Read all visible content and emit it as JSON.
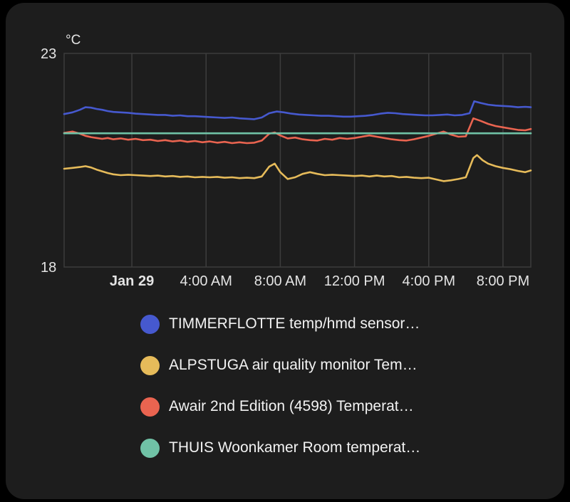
{
  "colors": {
    "outer_bg": "#000000",
    "card_bg": "#1d1d1d",
    "grid": "#3c3c3c",
    "axis_text": "#e4e4e4",
    "legend_text": "#f2f2f2"
  },
  "chart_data": {
    "type": "line",
    "title": "",
    "unit_label": "°C",
    "xlabel": "",
    "ylabel": "°C",
    "ylim": [
      18,
      23
    ],
    "xlim": [
      -3.65,
      21.5
    ],
    "grid": true,
    "legend_position": "bottom",
    "y_ticks": [
      {
        "value": 23,
        "label": "23"
      },
      {
        "value": 18,
        "label": "18"
      }
    ],
    "x_ticks": [
      {
        "value": 0,
        "label": "Jan 29",
        "bold": true
      },
      {
        "value": 4,
        "label": "4:00 AM",
        "bold": false
      },
      {
        "value": 8,
        "label": "8:00 AM",
        "bold": false
      },
      {
        "value": 12,
        "label": "12:00 PM",
        "bold": false
      },
      {
        "value": 16,
        "label": "4:00 PM",
        "bold": false
      },
      {
        "value": 20,
        "label": "8:00 PM",
        "bold": false
      }
    ],
    "series": [
      {
        "name": "TIMMERFLOTTE temp/hmd sensor…",
        "color": "#4659cf",
        "points": [
          [
            -3.65,
            21.58
          ],
          [
            -3.2,
            21.62
          ],
          [
            -2.8,
            21.68
          ],
          [
            -2.5,
            21.74
          ],
          [
            -2.2,
            21.73
          ],
          [
            -1.9,
            21.7
          ],
          [
            -1.6,
            21.68
          ],
          [
            -1.3,
            21.65
          ],
          [
            -1.0,
            21.63
          ],
          [
            -0.6,
            21.62
          ],
          [
            -0.2,
            21.61
          ],
          [
            0.2,
            21.59
          ],
          [
            0.6,
            21.58
          ],
          [
            1.0,
            21.57
          ],
          [
            1.4,
            21.56
          ],
          [
            1.8,
            21.56
          ],
          [
            2.2,
            21.54
          ],
          [
            2.6,
            21.55
          ],
          [
            3.0,
            21.53
          ],
          [
            3.4,
            21.53
          ],
          [
            3.8,
            21.52
          ],
          [
            4.2,
            21.51
          ],
          [
            4.6,
            21.5
          ],
          [
            5.0,
            21.49
          ],
          [
            5.4,
            21.5
          ],
          [
            5.8,
            21.48
          ],
          [
            6.2,
            21.47
          ],
          [
            6.6,
            21.46
          ],
          [
            7.0,
            21.5
          ],
          [
            7.4,
            21.6
          ],
          [
            7.8,
            21.64
          ],
          [
            8.2,
            21.62
          ],
          [
            8.6,
            21.59
          ],
          [
            9.0,
            21.57
          ],
          [
            9.4,
            21.56
          ],
          [
            9.8,
            21.55
          ],
          [
            10.2,
            21.54
          ],
          [
            10.6,
            21.54
          ],
          [
            11.0,
            21.53
          ],
          [
            11.4,
            21.52
          ],
          [
            11.8,
            21.52
          ],
          [
            12.2,
            21.53
          ],
          [
            12.6,
            21.54
          ],
          [
            13.0,
            21.56
          ],
          [
            13.4,
            21.59
          ],
          [
            13.8,
            21.61
          ],
          [
            14.2,
            21.6
          ],
          [
            14.6,
            21.58
          ],
          [
            15.0,
            21.57
          ],
          [
            15.4,
            21.56
          ],
          [
            15.8,
            21.55
          ],
          [
            16.2,
            21.55
          ],
          [
            16.6,
            21.56
          ],
          [
            17.0,
            21.57
          ],
          [
            17.4,
            21.55
          ],
          [
            17.8,
            21.56
          ],
          [
            18.2,
            21.6
          ],
          [
            18.45,
            21.88
          ],
          [
            18.8,
            21.84
          ],
          [
            19.2,
            21.8
          ],
          [
            19.6,
            21.78
          ],
          [
            20.0,
            21.77
          ],
          [
            20.4,
            21.76
          ],
          [
            20.8,
            21.74
          ],
          [
            21.2,
            21.75
          ],
          [
            21.5,
            21.74
          ]
        ]
      },
      {
        "name": "ALPSTUGA air quality monitor Tem…",
        "color": "#e6bb5a",
        "points": [
          [
            -3.65,
            20.3
          ],
          [
            -3.2,
            20.32
          ],
          [
            -2.8,
            20.34
          ],
          [
            -2.5,
            20.36
          ],
          [
            -2.2,
            20.33
          ],
          [
            -1.9,
            20.28
          ],
          [
            -1.6,
            20.24
          ],
          [
            -1.3,
            20.2
          ],
          [
            -1.0,
            20.17
          ],
          [
            -0.6,
            20.15
          ],
          [
            -0.2,
            20.16
          ],
          [
            0.2,
            20.15
          ],
          [
            0.6,
            20.14
          ],
          [
            1.0,
            20.13
          ],
          [
            1.4,
            20.14
          ],
          [
            1.8,
            20.12
          ],
          [
            2.2,
            20.13
          ],
          [
            2.6,
            20.11
          ],
          [
            3.0,
            20.12
          ],
          [
            3.4,
            20.1
          ],
          [
            3.8,
            20.11
          ],
          [
            4.2,
            20.1
          ],
          [
            4.6,
            20.11
          ],
          [
            5.0,
            20.09
          ],
          [
            5.4,
            20.1
          ],
          [
            5.8,
            20.08
          ],
          [
            6.2,
            20.09
          ],
          [
            6.6,
            20.08
          ],
          [
            7.0,
            20.12
          ],
          [
            7.4,
            20.35
          ],
          [
            7.7,
            20.42
          ],
          [
            8.0,
            20.22
          ],
          [
            8.4,
            20.06
          ],
          [
            8.8,
            20.1
          ],
          [
            9.2,
            20.18
          ],
          [
            9.6,
            20.22
          ],
          [
            10.0,
            20.18
          ],
          [
            10.4,
            20.15
          ],
          [
            10.8,
            20.16
          ],
          [
            11.2,
            20.15
          ],
          [
            11.6,
            20.14
          ],
          [
            12.0,
            20.13
          ],
          [
            12.4,
            20.14
          ],
          [
            12.8,
            20.12
          ],
          [
            13.2,
            20.14
          ],
          [
            13.6,
            20.12
          ],
          [
            14.0,
            20.13
          ],
          [
            14.4,
            20.1
          ],
          [
            14.8,
            20.11
          ],
          [
            15.2,
            20.09
          ],
          [
            15.6,
            20.08
          ],
          [
            16.0,
            20.09
          ],
          [
            16.4,
            20.05
          ],
          [
            16.8,
            20.01
          ],
          [
            17.2,
            20.03
          ],
          [
            17.6,
            20.06
          ],
          [
            18.0,
            20.1
          ],
          [
            18.4,
            20.55
          ],
          [
            18.6,
            20.62
          ],
          [
            18.9,
            20.5
          ],
          [
            19.2,
            20.42
          ],
          [
            19.6,
            20.36
          ],
          [
            20.0,
            20.32
          ],
          [
            20.4,
            20.29
          ],
          [
            20.8,
            20.25
          ],
          [
            21.2,
            20.22
          ],
          [
            21.5,
            20.26
          ]
        ]
      },
      {
        "name": "Awair 2nd Edition (4598) Temperat…",
        "color": "#ea6450",
        "points": [
          [
            -3.65,
            21.14
          ],
          [
            -3.2,
            21.17
          ],
          [
            -2.8,
            21.12
          ],
          [
            -2.5,
            21.07
          ],
          [
            -2.2,
            21.04
          ],
          [
            -1.9,
            21.02
          ],
          [
            -1.6,
            21.0
          ],
          [
            -1.3,
            21.02
          ],
          [
            -1.0,
            20.99
          ],
          [
            -0.6,
            21.01
          ],
          [
            -0.2,
            20.98
          ],
          [
            0.2,
            21.0
          ],
          [
            0.6,
            20.97
          ],
          [
            1.0,
            20.98
          ],
          [
            1.4,
            20.95
          ],
          [
            1.8,
            20.97
          ],
          [
            2.2,
            20.94
          ],
          [
            2.6,
            20.96
          ],
          [
            3.0,
            20.93
          ],
          [
            3.4,
            20.95
          ],
          [
            3.8,
            20.92
          ],
          [
            4.2,
            20.94
          ],
          [
            4.6,
            20.91
          ],
          [
            5.0,
            20.93
          ],
          [
            5.4,
            20.9
          ],
          [
            5.8,
            20.92
          ],
          [
            6.2,
            20.9
          ],
          [
            6.6,
            20.91
          ],
          [
            7.0,
            20.96
          ],
          [
            7.4,
            21.12
          ],
          [
            7.7,
            21.15
          ],
          [
            8.0,
            21.08
          ],
          [
            8.4,
            21.01
          ],
          [
            8.8,
            21.03
          ],
          [
            9.2,
            20.99
          ],
          [
            9.6,
            20.97
          ],
          [
            10.0,
            20.96
          ],
          [
            10.4,
            21.0
          ],
          [
            10.8,
            20.98
          ],
          [
            11.2,
            21.02
          ],
          [
            11.6,
            21.0
          ],
          [
            12.0,
            21.02
          ],
          [
            12.4,
            21.05
          ],
          [
            12.8,
            21.08
          ],
          [
            13.2,
            21.05
          ],
          [
            13.6,
            21.02
          ],
          [
            14.0,
            20.99
          ],
          [
            14.4,
            20.97
          ],
          [
            14.8,
            20.96
          ],
          [
            15.2,
            20.99
          ],
          [
            15.6,
            21.03
          ],
          [
            16.0,
            21.07
          ],
          [
            16.4,
            21.12
          ],
          [
            16.8,
            21.17
          ],
          [
            17.2,
            21.1
          ],
          [
            17.6,
            21.05
          ],
          [
            18.0,
            21.06
          ],
          [
            18.4,
            21.48
          ],
          [
            18.8,
            21.42
          ],
          [
            19.2,
            21.35
          ],
          [
            19.6,
            21.3
          ],
          [
            20.0,
            21.27
          ],
          [
            20.4,
            21.24
          ],
          [
            20.8,
            21.21
          ],
          [
            21.2,
            21.2
          ],
          [
            21.5,
            21.23
          ]
        ]
      },
      {
        "name": "THUIS Woonkamer Room temperat…",
        "color": "#70c2a6",
        "points": [
          [
            -3.65,
            21.13
          ],
          [
            21.5,
            21.13
          ]
        ]
      }
    ]
  }
}
